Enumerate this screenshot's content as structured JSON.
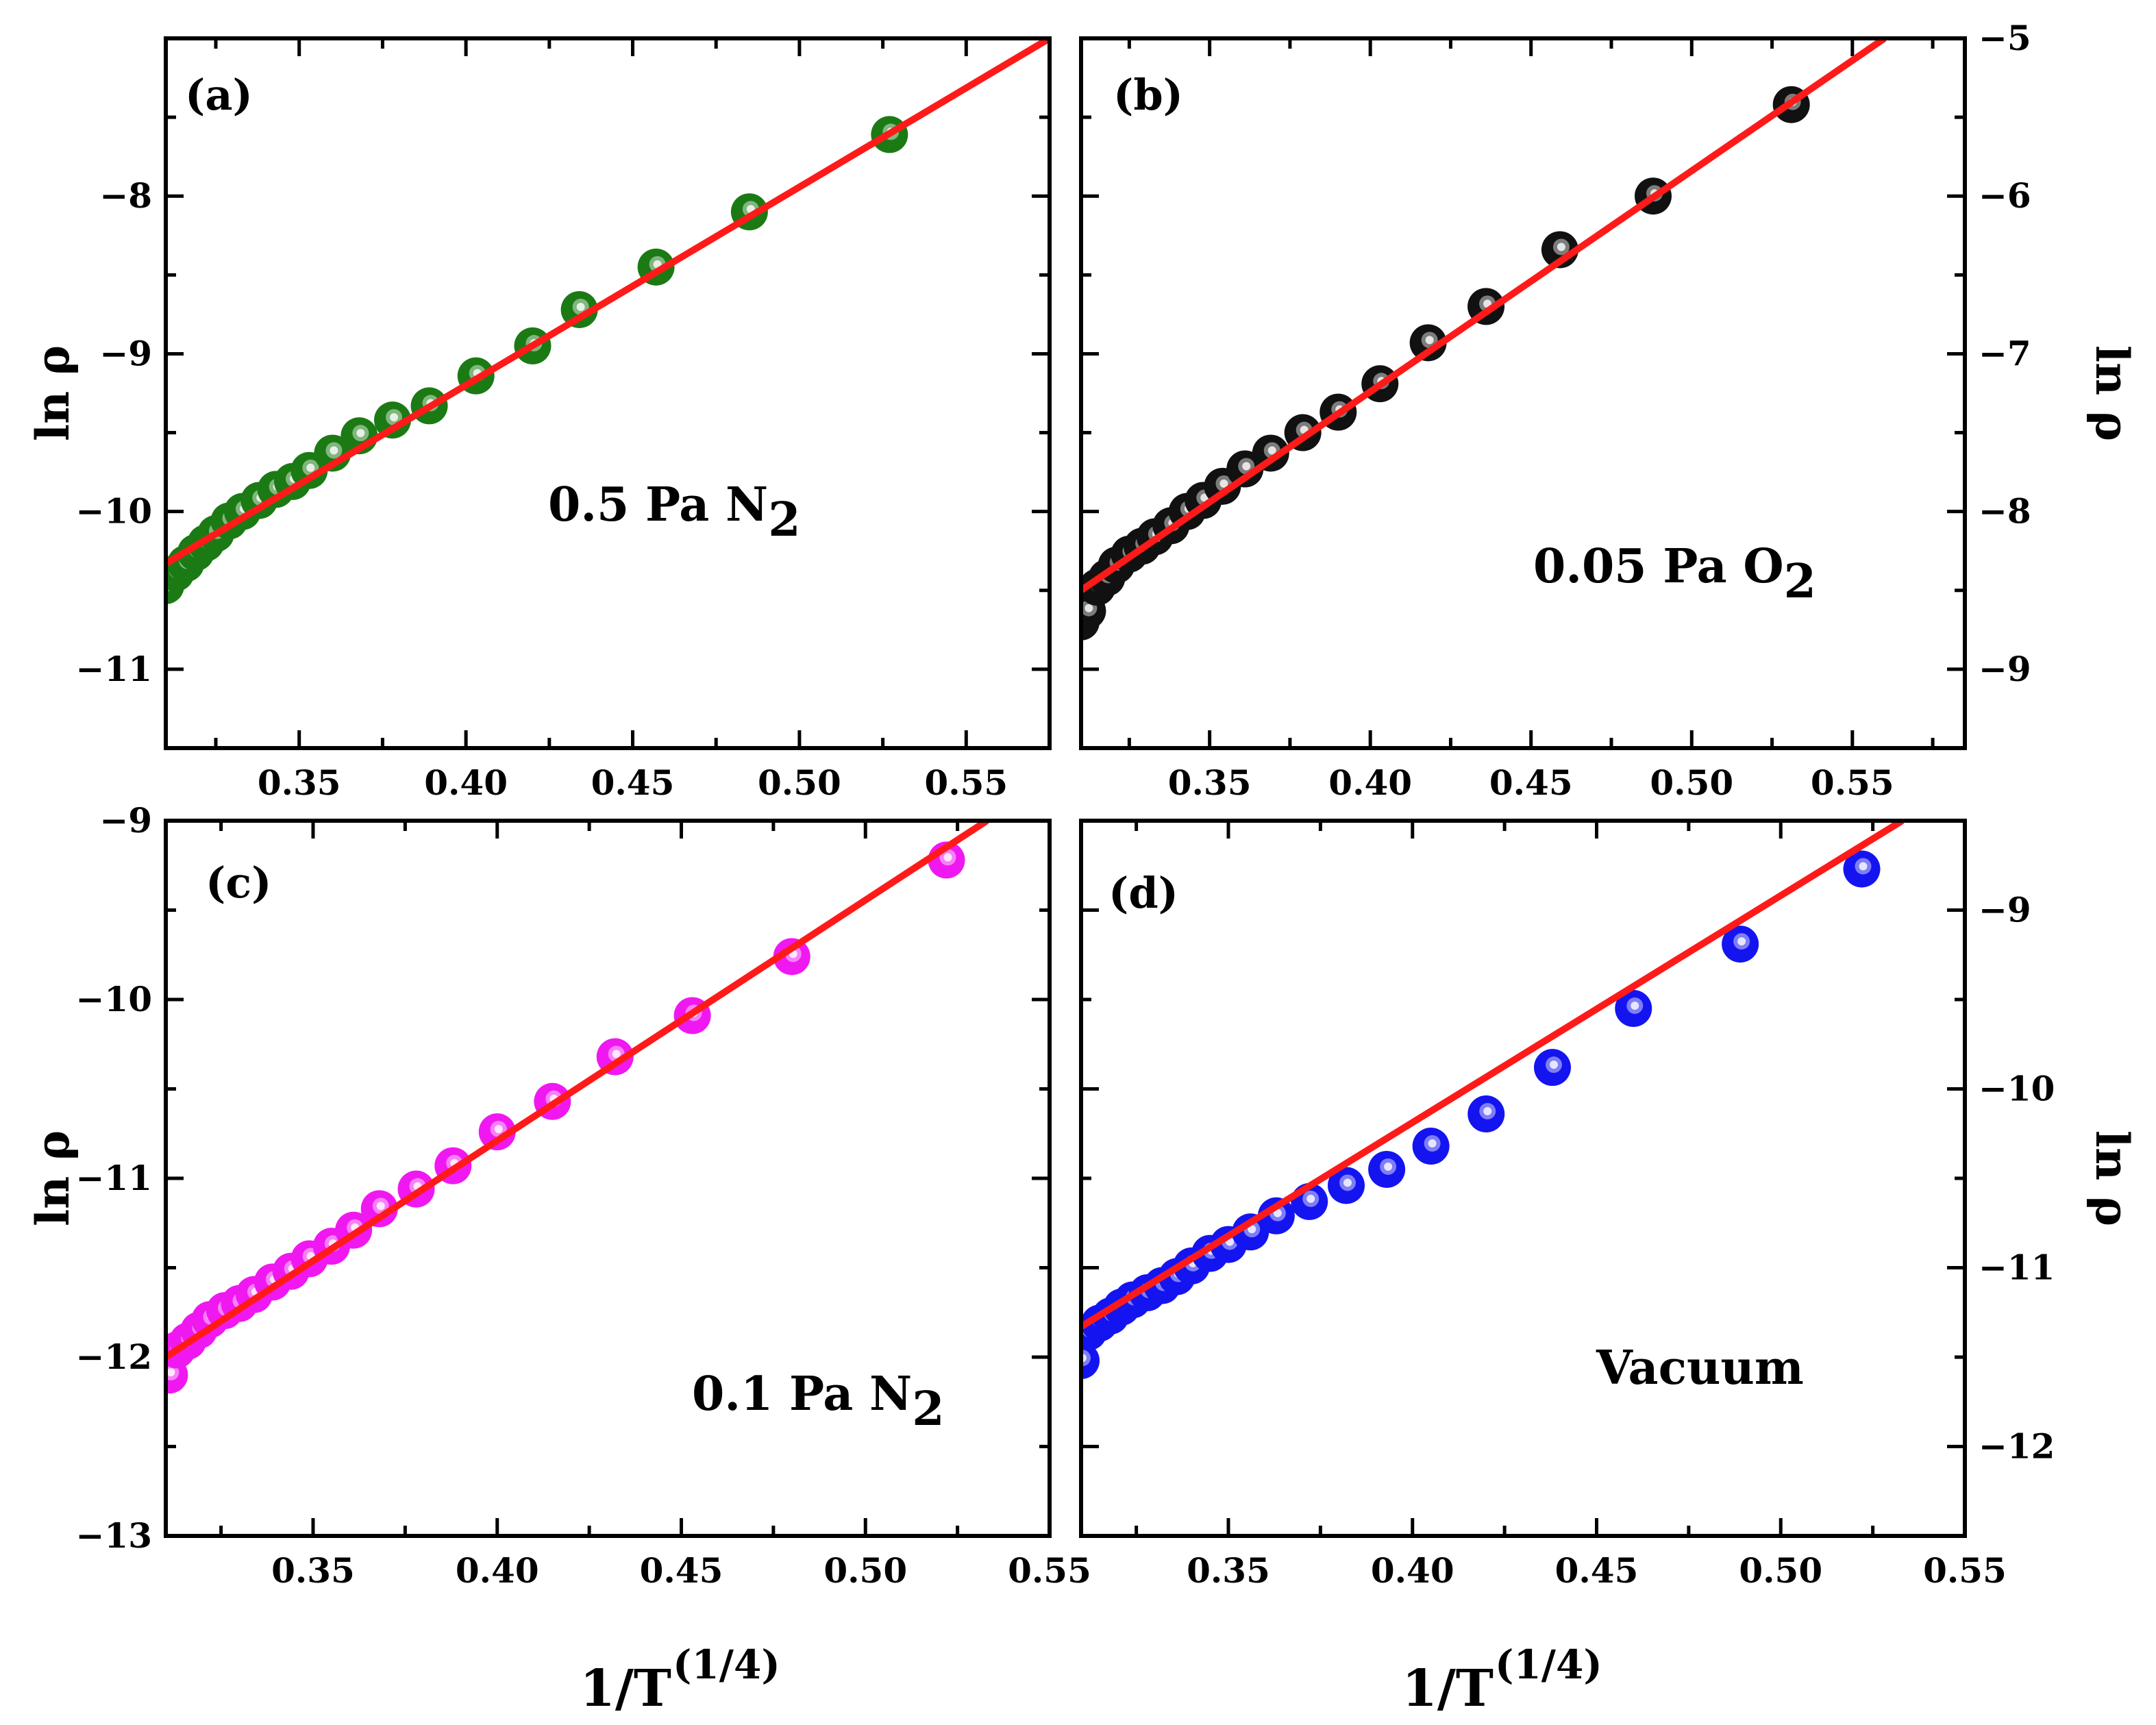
{
  "chart_data": [
    {
      "type": "scatter",
      "panel_label": "(a)",
      "annotation": "0.5 Pa N",
      "annotation_subscript": "2",
      "ylabel": "ln ρ",
      "xlim": [
        0.31,
        0.575
      ],
      "ylim": [
        -11.5,
        -7.0
      ],
      "xticks": [
        0.35,
        0.4,
        0.45,
        0.5,
        0.55
      ],
      "xtick_labels": [
        "0.35",
        "0.40",
        "0.45",
        "0.50",
        "0.55"
      ],
      "yticks": [
        -8,
        -9,
        -10,
        -11
      ],
      "ytick_labels": [
        "−8",
        "−9",
        "−10",
        "−11"
      ],
      "marker_color": "#1b7a14",
      "fit_color": "#ff1a1a",
      "fit_line": {
        "x": [
          0.31,
          0.575
        ],
        "y": [
          -10.33,
          -7.0
        ]
      },
      "series": [
        {
          "name": "data",
          "x": [
            0.31,
            0.313,
            0.316,
            0.319,
            0.322,
            0.325,
            0.329,
            0.333,
            0.338,
            0.343,
            0.348,
            0.353,
            0.36,
            0.368,
            0.378,
            0.389,
            0.403,
            0.42,
            0.434,
            0.457,
            0.485,
            0.527
          ],
          "y": [
            -10.47,
            -10.39,
            -10.33,
            -10.26,
            -10.2,
            -10.14,
            -10.06,
            -10.0,
            -9.93,
            -9.86,
            -9.81,
            -9.74,
            -9.63,
            -9.52,
            -9.42,
            -9.33,
            -9.14,
            -8.95,
            -8.72,
            -8.45,
            -8.1,
            -7.61
          ]
        }
      ]
    },
    {
      "type": "scatter",
      "panel_label": "(b)",
      "annotation": "0.05 Pa O",
      "annotation_subscript": "2",
      "ylabel": "ln ρ",
      "xlim": [
        0.31,
        0.585
      ],
      "ylim": [
        -9.5,
        -5.0
      ],
      "xticks": [
        0.35,
        0.4,
        0.45,
        0.5,
        0.55
      ],
      "xtick_labels": [
        "0.35",
        "0.40",
        "0.45",
        "0.50",
        "0.55"
      ],
      "yticks": [
        -5,
        -6,
        -7,
        -8,
        -9
      ],
      "ytick_labels": [
        "−5",
        "−6",
        "−7",
        "−8",
        "−9"
      ],
      "marker_color": "#111111",
      "fit_color": "#ff1a1a",
      "fit_line": {
        "x": [
          0.31,
          0.56
        ],
        "y": [
          -8.5,
          -5.0
        ]
      },
      "series": [
        {
          "name": "data",
          "x": [
            0.31,
            0.312,
            0.315,
            0.318,
            0.321,
            0.325,
            0.329,
            0.333,
            0.338,
            0.343,
            0.348,
            0.354,
            0.361,
            0.369,
            0.379,
            0.39,
            0.403,
            0.418,
            0.436,
            0.459,
            0.488,
            0.531
          ],
          "y": [
            -8.7,
            -8.63,
            -8.48,
            -8.42,
            -8.34,
            -8.27,
            -8.22,
            -8.16,
            -8.09,
            -8.0,
            -7.93,
            -7.84,
            -7.73,
            -7.63,
            -7.5,
            -7.37,
            -7.19,
            -6.93,
            -6.7,
            -6.34,
            -6.0,
            -5.42
          ]
        }
      ]
    },
    {
      "type": "scatter",
      "panel_label": "(c)",
      "annotation": "0.1 Pa N",
      "annotation_subscript": "2",
      "ylabel": "ln ρ",
      "xlim": [
        0.31,
        0.55
      ],
      "ylim": [
        -13.0,
        -9.0
      ],
      "xticks": [
        0.35,
        0.4,
        0.45,
        0.5,
        0.55
      ],
      "xtick_labels": [
        "0.35",
        "0.40",
        "0.45",
        "0.50",
        "0.55"
      ],
      "yticks": [
        -9,
        -10,
        -11,
        -12,
        -13
      ],
      "ytick_labels": [
        "−9",
        "−10",
        "−11",
        "−12",
        "−13"
      ],
      "marker_color": "#f018f0",
      "fit_color": "#ff1a1a",
      "fit_line": {
        "x": [
          0.31,
          0.533
        ],
        "y": [
          -12.0,
          -9.0
        ]
      },
      "series": [
        {
          "name": "data",
          "x": [
            0.311,
            0.313,
            0.316,
            0.319,
            0.322,
            0.326,
            0.33,
            0.334,
            0.339,
            0.344,
            0.349,
            0.355,
            0.361,
            0.368,
            0.378,
            0.388,
            0.4,
            0.415,
            0.432,
            0.453,
            0.48,
            0.522
          ],
          "y": [
            -12.1,
            -11.96,
            -11.91,
            -11.85,
            -11.79,
            -11.74,
            -11.7,
            -11.65,
            -11.58,
            -11.52,
            -11.45,
            -11.38,
            -11.29,
            -11.17,
            -11.06,
            -10.93,
            -10.74,
            -10.57,
            -10.32,
            -10.09,
            -9.76,
            -9.22
          ]
        }
      ]
    },
    {
      "type": "scatter",
      "panel_label": "(d)",
      "annotation": "Vacuum",
      "annotation_subscript": "",
      "ylabel": "ln ρ",
      "xlim": [
        0.31,
        0.55
      ],
      "ylim": [
        -12.5,
        -8.5
      ],
      "xticks": [
        0.35,
        0.4,
        0.45,
        0.5,
        0.55
      ],
      "xtick_labels": [
        "0.35",
        "0.40",
        "0.45",
        "0.50",
        "0.55"
      ],
      "yticks": [
        -9,
        -10,
        -11,
        -12
      ],
      "ytick_labels": [
        "−9",
        "−10",
        "−11",
        "−12"
      ],
      "marker_color": "#1414f0",
      "fit_color": "#ff1a1a",
      "fit_line": {
        "x": [
          0.31,
          0.533
        ],
        "y": [
          -11.33,
          -8.5
        ]
      },
      "series": [
        {
          "name": "data",
          "x": [
            0.31,
            0.312,
            0.315,
            0.318,
            0.321,
            0.324,
            0.328,
            0.332,
            0.336,
            0.34,
            0.345,
            0.35,
            0.356,
            0.363,
            0.372,
            0.382,
            0.393,
            0.405,
            0.42,
            0.438,
            0.46,
            0.489,
            0.522
          ],
          "y": [
            -11.52,
            -11.36,
            -11.31,
            -11.27,
            -11.22,
            -11.18,
            -11.14,
            -11.1,
            -11.05,
            -10.99,
            -10.92,
            -10.87,
            -10.8,
            -10.71,
            -10.63,
            -10.54,
            -10.45,
            -10.32,
            -10.14,
            -9.88,
            -9.55,
            -9.19,
            -8.77
          ]
        }
      ]
    }
  ],
  "xlabel_base": "1/T",
  "xlabel_super": "(1/4)",
  "colors": {
    "fit": "#ff1a1a",
    "axis": "#000000"
  }
}
